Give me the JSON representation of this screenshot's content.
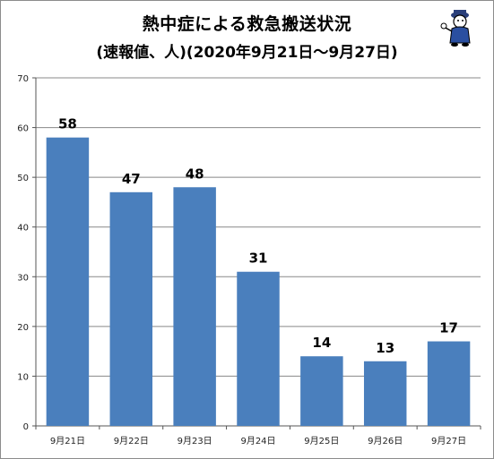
{
  "title": "熱中症による救急搬送状況",
  "subtitle": "(速報値、人)(2020年9月21日～9月27日)",
  "mascot": {
    "icon": "mascot-character-icon"
  },
  "chart_data": {
    "type": "bar",
    "categories": [
      "9月21日",
      "9月22日",
      "9月23日",
      "9月24日",
      "9月25日",
      "9月26日",
      "9月27日"
    ],
    "values": [
      58,
      47,
      48,
      31,
      14,
      13,
      17
    ],
    "ylim": [
      0,
      70
    ],
    "yticks": [
      0,
      10,
      20,
      30,
      40,
      50,
      60,
      70
    ],
    "grid": true,
    "bar_color": "#4a7fbd",
    "grid_color": "#888888"
  }
}
